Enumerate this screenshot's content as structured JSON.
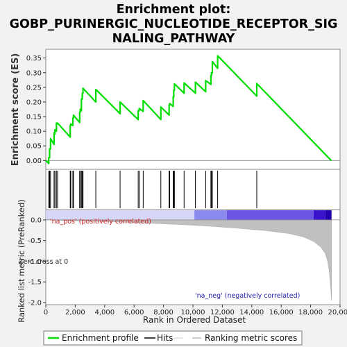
{
  "title_lines": [
    "Enrichment plot:",
    "GOBP_PURINERGIC_NUCLEOTIDE_RECEPTOR_SIG",
    "NALING_PATHWAY"
  ],
  "colors": {
    "es_line": "#00dd00",
    "hits": "#000000",
    "metric_fill": "#c0c0c0",
    "pos_label": "#cc2222",
    "neg_label": "#2222aa",
    "background": "#f2f2f2",
    "heat_start": "#d8d8f8",
    "heat_end": "#2a00cc"
  },
  "chart_data": [
    {
      "type": "line",
      "name": "enrichment-profile",
      "ylabel": "Enrichment score (ES)",
      "xlim": [
        0,
        20000
      ],
      "ylim": [
        -0.03,
        0.38
      ],
      "yticks": [
        0.0,
        0.05,
        0.1,
        0.15,
        0.2,
        0.25,
        0.3,
        0.35
      ],
      "ytick_labels": [
        "0.00",
        "0.05",
        "0.10",
        "0.15",
        "0.20",
        "0.25",
        "0.30",
        "0.35"
      ],
      "grid": false,
      "x": [
        0,
        200,
        200,
        260,
        260,
        320,
        320,
        560,
        560,
        620,
        620,
        720,
        720,
        800,
        800,
        1660,
        1660,
        1700,
        1700,
        1840,
        1840,
        1880,
        1880,
        2300,
        2300,
        2340,
        2340,
        2420,
        2420,
        2480,
        2480,
        2530,
        2530,
        3400,
        3400,
        5050,
        5050,
        6280,
        6280,
        6350,
        6350,
        6620,
        6620,
        7820,
        7820,
        8380,
        8380,
        8420,
        8420,
        8660,
        8660,
        8700,
        8700,
        8740,
        8740,
        9400,
        9400,
        10170,
        10170,
        10870,
        10870,
        11220,
        11220,
        11260,
        11260,
        11320,
        11320,
        11680,
        11680,
        14340,
        14340,
        19400
      ],
      "y": [
        0,
        -0.01,
        0.01,
        0.01,
        0.04,
        0.04,
        0.075,
        0.055,
        0.095,
        0.09,
        0.105,
        0.1,
        0.128,
        0.125,
        0.128,
        0.08,
        0.12,
        0.12,
        0.125,
        0.12,
        0.145,
        0.145,
        0.155,
        0.13,
        0.165,
        0.165,
        0.175,
        0.17,
        0.21,
        0.21,
        0.23,
        0.23,
        0.247,
        0.2,
        0.243,
        0.16,
        0.2,
        0.14,
        0.17,
        0.17,
        0.178,
        0.168,
        0.205,
        0.14,
        0.183,
        0.155,
        0.19,
        0.19,
        0.195,
        0.185,
        0.218,
        0.218,
        0.24,
        0.24,
        0.262,
        0.23,
        0.265,
        0.23,
        0.268,
        0.235,
        0.273,
        0.26,
        0.29,
        0.29,
        0.3,
        0.3,
        0.338,
        0.315,
        0.358,
        0.22,
        0.263,
        0.0
      ]
    },
    {
      "type": "scatter",
      "name": "hits",
      "x": [
        200,
        260,
        320,
        560,
        620,
        720,
        800,
        1660,
        1700,
        1840,
        1880,
        2300,
        2340,
        2420,
        2480,
        2530,
        3400,
        5050,
        6280,
        6350,
        6620,
        7820,
        8380,
        8420,
        8660,
        8700,
        8740,
        9400,
        10170,
        10870,
        11220,
        11260,
        11320,
        11680,
        14340
      ]
    },
    {
      "type": "area",
      "name": "ranked-list-metric",
      "ylabel": "Ranked list metric (PreRanked)",
      "xlabel": "Rank in Ordered Dataset",
      "xlim": [
        0,
        20000
      ],
      "ylim": [
        -2.05,
        0.25
      ],
      "xticks": [
        0,
        2000,
        4000,
        6000,
        8000,
        10000,
        12000,
        14000,
        16000,
        18000,
        20000
      ],
      "xtick_labels": [
        "0",
        "2,000",
        "4,000",
        "6,000",
        "8,000",
        "10,000",
        "12,000",
        "14,000",
        "16,000",
        "18,000",
        "20,000"
      ],
      "yticks": [
        0.0,
        -0.5,
        -1.0,
        -1.5,
        -2.0
      ],
      "ytick_labels": [
        "0.0",
        "-0.5",
        "-1.0",
        "-1.5",
        "-2.0"
      ],
      "x": [
        0,
        1000,
        3000,
        5000,
        7000,
        9000,
        11000,
        13000,
        15000,
        16500,
        17500,
        18200,
        18700,
        19000,
        19150,
        19250,
        19320,
        19380,
        19420
      ],
      "y": [
        0.0,
        -0.01,
        -0.03,
        -0.05,
        -0.08,
        -0.11,
        -0.15,
        -0.2,
        -0.26,
        -0.33,
        -0.41,
        -0.52,
        -0.66,
        -0.82,
        -1.0,
        -1.2,
        -1.45,
        -1.75,
        -1.95
      ],
      "annotations": {
        "pos": "'na_pos' (positively correlated)",
        "neg": "'na_neg' (negatively correlated)",
        "zero_cross": "Zero cross at 0"
      }
    }
  ],
  "legend": {
    "items": [
      {
        "label": "Enrichment profile"
      },
      {
        "label": "Hits"
      },
      {
        "label": "Ranking metric scores"
      }
    ]
  }
}
